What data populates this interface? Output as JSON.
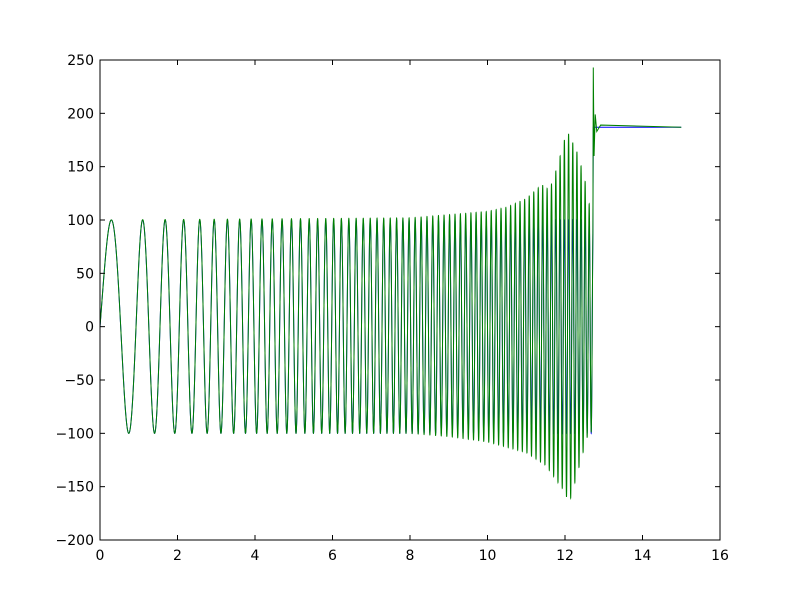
{
  "chart_data": {
    "type": "line",
    "title": "",
    "xlabel": "",
    "ylabel": "",
    "xlim": [
      0,
      16
    ],
    "ylim": [
      -200,
      250
    ],
    "xticks": [
      "0",
      "2",
      "4",
      "6",
      "8",
      "10",
      "12",
      "14",
      "16"
    ],
    "yticks": [
      "−200",
      "−150",
      "−100",
      "−50",
      "0",
      "50",
      "100",
      "150",
      "200",
      "250"
    ],
    "xtick_values": [
      0,
      2,
      4,
      6,
      8,
      10,
      12,
      14,
      16
    ],
    "ytick_values": [
      -200,
      -150,
      -100,
      -50,
      0,
      50,
      100,
      150,
      200,
      250
    ],
    "grid": false,
    "legend": "none",
    "series": [
      {
        "color": "#0000ff",
        "description_shape": "chirp oscillation",
        "amplitude": 100,
        "oscillation_end_x": 12.72,
        "final_level": 187,
        "end_x": 15
      },
      {
        "color": "#008000",
        "description_shape": "chirp oscillation with growing envelope",
        "upper_envelope": {
          "x": [
            0,
            8,
            9,
            10,
            10.5,
            11,
            11.4,
            11.6,
            11.8,
            12.05,
            12.3,
            12.5,
            12.7
          ],
          "y": [
            100,
            102,
            105,
            108,
            112,
            120,
            133,
            128,
            150,
            184,
            165,
            140,
            100
          ]
        },
        "lower_envelope": {
          "x": [
            0,
            8,
            9,
            10,
            11,
            11.5,
            12,
            12.1,
            12.3,
            12.6,
            12.7
          ],
          "y": [
            -100,
            -100,
            -103,
            -108,
            -118,
            -130,
            -155,
            -167,
            -140,
            -100,
            -98
          ]
        },
        "oscillation_end_x": 12.72,
        "spike_peak": 243,
        "spike_dip": 160,
        "final_level": 187,
        "end_x": 15
      }
    ]
  }
}
